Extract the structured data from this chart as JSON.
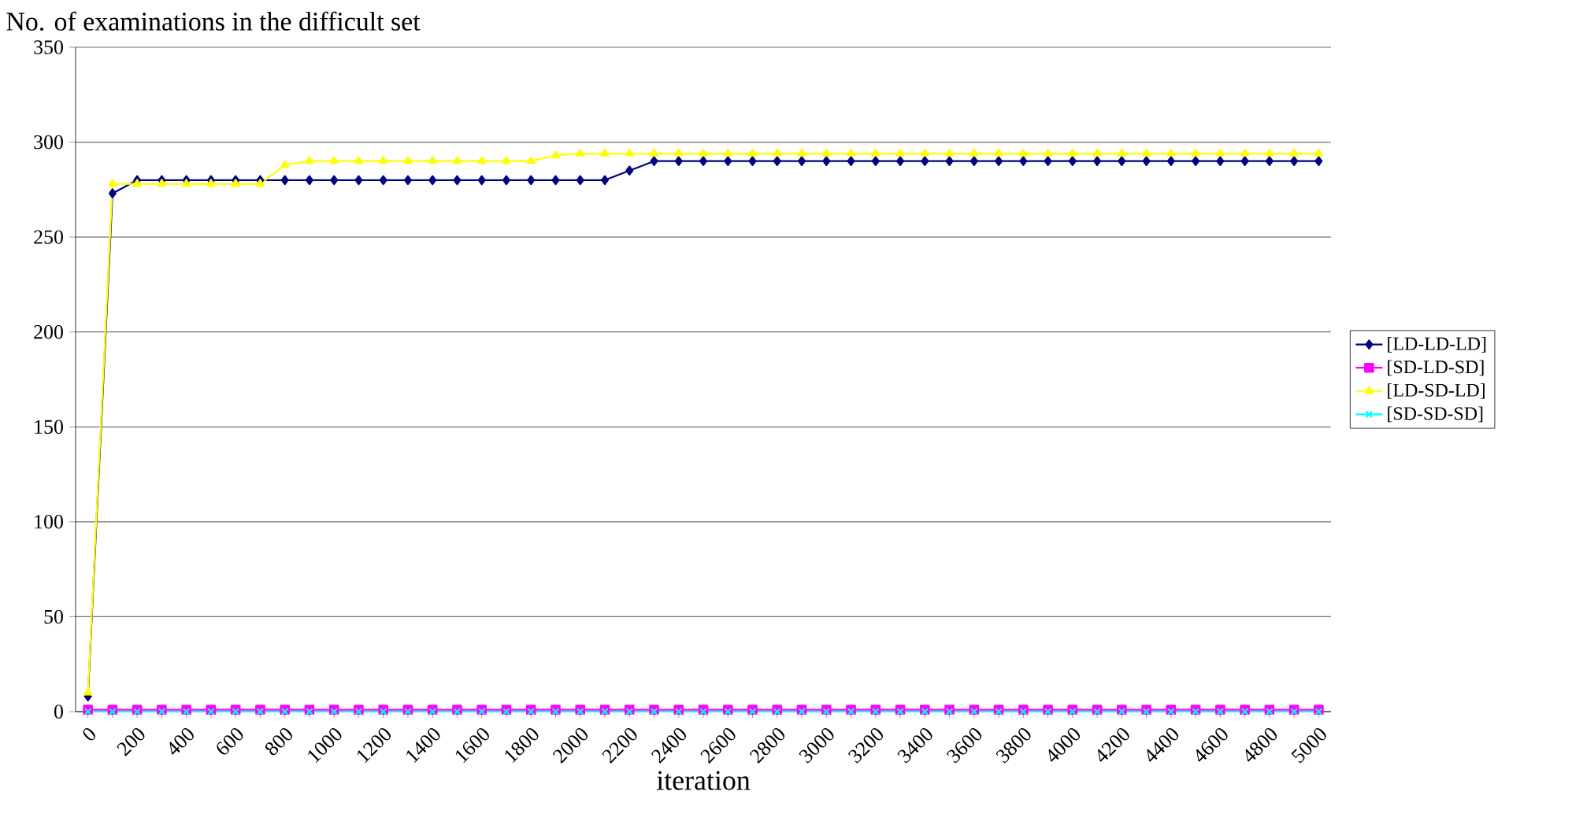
{
  "chart_data": {
    "type": "line",
    "title": "No. of examinations in the difficult set",
    "xlabel": "iteration",
    "categories": [
      "0",
      null,
      "200",
      null,
      "400",
      null,
      "600",
      null,
      "800",
      null,
      "1000",
      null,
      "1200",
      null,
      "1400",
      null,
      "1600",
      null,
      "1800",
      null,
      "2000",
      null,
      "2200",
      null,
      "2400",
      null,
      "2600",
      null,
      "2800",
      null,
      "3000",
      null,
      "3200",
      null,
      "3400",
      null,
      "3600",
      null,
      "3800",
      null,
      "4000",
      null,
      "4200",
      null,
      "4400",
      null,
      "4600",
      null,
      "4800",
      null,
      "5000"
    ],
    "series": [
      {
        "name": "[LD-LD-LD]",
        "color": "#000080",
        "marker": "diamond",
        "values": [
          8,
          273,
          280,
          280,
          280,
          280,
          280,
          280,
          280,
          280,
          280,
          280,
          280,
          280,
          280,
          280,
          280,
          280,
          280,
          280,
          280,
          280,
          285,
          290,
          290,
          290,
          290,
          290,
          290,
          290,
          290,
          290,
          290,
          290,
          290,
          290,
          290,
          290,
          290,
          290,
          290,
          290,
          290,
          290,
          290,
          290,
          290,
          290,
          290,
          290,
          290
        ]
      },
      {
        "name": "[SD-LD-SD]",
        "color": "#ff00ff",
        "marker": "square",
        "values": [
          1,
          1,
          1,
          1,
          1,
          1,
          1,
          1,
          1,
          1,
          1,
          1,
          1,
          1,
          1,
          1,
          1,
          1,
          1,
          1,
          1,
          1,
          1,
          1,
          1,
          1,
          1,
          1,
          1,
          1,
          1,
          1,
          1,
          1,
          1,
          1,
          1,
          1,
          1,
          1,
          1,
          1,
          1,
          1,
          1,
          1,
          1,
          1,
          1,
          1,
          1
        ]
      },
      {
        "name": "[LD-SD-LD]",
        "color": "#ffff00",
        "marker": "triangle",
        "values": [
          10,
          278,
          278,
          278,
          278,
          278,
          278,
          278,
          288,
          290,
          290,
          290,
          290,
          290,
          290,
          290,
          290,
          290,
          290,
          293,
          294,
          294,
          294,
          294,
          294,
          294,
          294,
          294,
          294,
          294,
          294,
          294,
          294,
          294,
          294,
          294,
          294,
          294,
          294,
          294,
          294,
          294,
          294,
          294,
          294,
          294,
          294,
          294,
          294,
          294,
          294
        ]
      },
      {
        "name": "[SD-SD-SD]",
        "color": "#00ffff",
        "marker": "cross",
        "values": [
          0,
          0,
          0,
          0,
          0,
          0,
          0,
          0,
          0,
          0,
          0,
          0,
          0,
          0,
          0,
          0,
          0,
          0,
          0,
          0,
          0,
          0,
          0,
          0,
          0,
          0,
          0,
          0,
          0,
          0,
          0,
          0,
          0,
          0,
          0,
          0,
          0,
          0,
          0,
          0,
          0,
          0,
          0,
          0,
          0,
          0,
          0,
          0,
          0,
          0,
          0
        ]
      }
    ],
    "ylim": [
      0,
      350
    ],
    "yticks": [
      0,
      50,
      100,
      150,
      200,
      250,
      300,
      350
    ],
    "grid": "y",
    "legend": "right",
    "line_style": "solid"
  }
}
